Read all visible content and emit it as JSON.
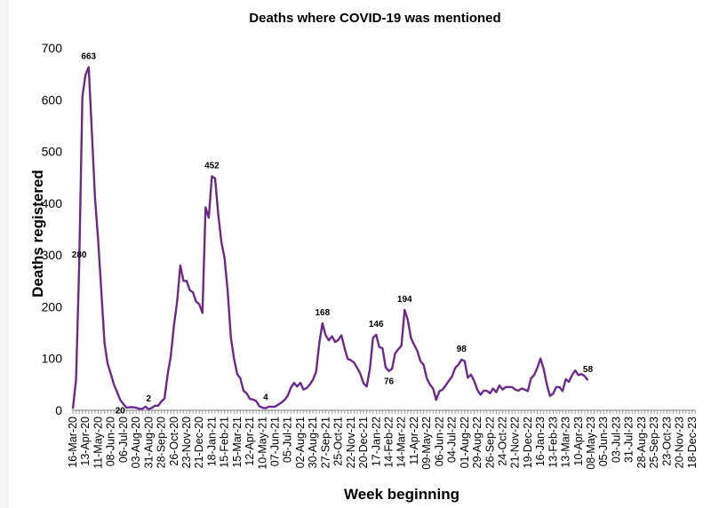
{
  "chart_data": {
    "type": "line",
    "title": "Deaths where COVID-19 was mentioned",
    "xlabel": "Week beginning",
    "ylabel": "Deaths registered",
    "ylim": [
      0,
      700
    ],
    "yticks": [
      0,
      100,
      200,
      300,
      400,
      500,
      600,
      700
    ],
    "grid": false,
    "legend": "none",
    "line_color": "#6a2a8c",
    "x_tick_labels": [
      "16-Mar-20",
      "13-Apr-20",
      "11-May-20",
      "08-Jun-20",
      "06-Jul-20",
      "03-Aug-20",
      "31-Aug-20",
      "28-Sep-20",
      "26-Oct-20",
      "23-Nov-20",
      "21-Dec-20",
      "18-Jan-21",
      "15-Feb-21",
      "15-Mar-21",
      "12-Apr-21",
      "10-May-21",
      "07-Jun-21",
      "05-Jul-21",
      "02-Aug-21",
      "30-Aug-21",
      "27-Sep-21",
      "25-Oct-21",
      "22-Nov-21",
      "20-Dec-21",
      "17-Jan-22",
      "14-Feb-22",
      "14-Mar-22",
      "11-Apr-22",
      "09-May-22",
      "06-Jun-22",
      "04-Jul-22",
      "01-Aug-22",
      "29-Aug-22",
      "26-Sep-22",
      "24-Oct-22",
      "21-Nov-22",
      "19-Dec-22",
      "16-Jan-23",
      "13-Feb-23",
      "13-Mar-23",
      "10-Apr-23",
      "08-May-23",
      "05-Jun-23",
      "03-Jul-23",
      "31-Jul-23",
      "28-Aug-23",
      "25-Sep-23",
      "23-Oct-23",
      "20-Nov-23",
      "18-Dec-23"
    ],
    "weekly_values": [
      3,
      60,
      280,
      606,
      648,
      663,
      540,
      410,
      330,
      230,
      130,
      90,
      70,
      50,
      35,
      20,
      12,
      5,
      6,
      6,
      5,
      3,
      3,
      7,
      2,
      5,
      9,
      9,
      17,
      23,
      70,
      105,
      165,
      210,
      280,
      250,
      250,
      232,
      228,
      210,
      205,
      188,
      392,
      372,
      452,
      448,
      380,
      325,
      295,
      230,
      140,
      100,
      70,
      62,
      38,
      33,
      22,
      21,
      18,
      8,
      5,
      4,
      7,
      7,
      7,
      11,
      15,
      20,
      28,
      44,
      53,
      46,
      53,
      40,
      43,
      50,
      59,
      75,
      130,
      168,
      145,
      135,
      143,
      132,
      136,
      145,
      120,
      99,
      97,
      92,
      82,
      70,
      52,
      46,
      80,
      140,
      146,
      122,
      120,
      83,
      76,
      80,
      110,
      118,
      125,
      194,
      175,
      140,
      127,
      115,
      95,
      88,
      62,
      50,
      42,
      20,
      37,
      40,
      48,
      57,
      65,
      82,
      88,
      98,
      95,
      63,
      69,
      57,
      40,
      30,
      38,
      38,
      33,
      42,
      35,
      48,
      40,
      45,
      45,
      45,
      40,
      38,
      42,
      40,
      37,
      62,
      68,
      82,
      100,
      80,
      50,
      28,
      32,
      45,
      45,
      37,
      60,
      55,
      68,
      77,
      68,
      70,
      66,
      58
    ],
    "data_labels": [
      {
        "text": "663",
        "value": 663,
        "position": "above"
      },
      {
        "text": "2",
        "value": 2,
        "position": "above"
      },
      {
        "text": "280",
        "value": 280,
        "position": "above"
      },
      {
        "text": "452",
        "value": 452,
        "position": "above"
      },
      {
        "text": "4",
        "value": 4,
        "position": "above"
      },
      {
        "text": "168",
        "value": 168,
        "position": "above"
      },
      {
        "text": "146",
        "value": 146,
        "position": "above"
      },
      {
        "text": "76",
        "value": 76,
        "position": "below"
      },
      {
        "text": "194",
        "value": 194,
        "position": "above"
      },
      {
        "text": "20",
        "value": 20,
        "position": "below"
      },
      {
        "text": "98",
        "value": 98,
        "position": "above"
      },
      {
        "text": "58",
        "value": 58,
        "position": "above"
      }
    ]
  }
}
